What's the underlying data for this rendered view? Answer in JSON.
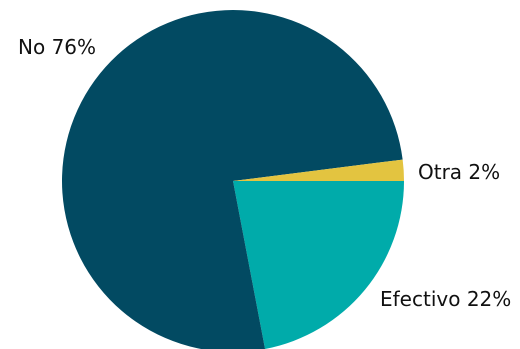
{
  "chart_data": {
    "type": "pie",
    "title": "",
    "legend": "none",
    "slices": [
      {
        "label": "No",
        "value": 76,
        "display": "76%",
        "color": "#024a62"
      },
      {
        "label": "Efectivo",
        "value": 22,
        "display": "22%",
        "color": "#00abaa"
      },
      {
        "label": "Otra",
        "value": 2,
        "display": "2%",
        "color": "#e3c440"
      }
    ]
  }
}
